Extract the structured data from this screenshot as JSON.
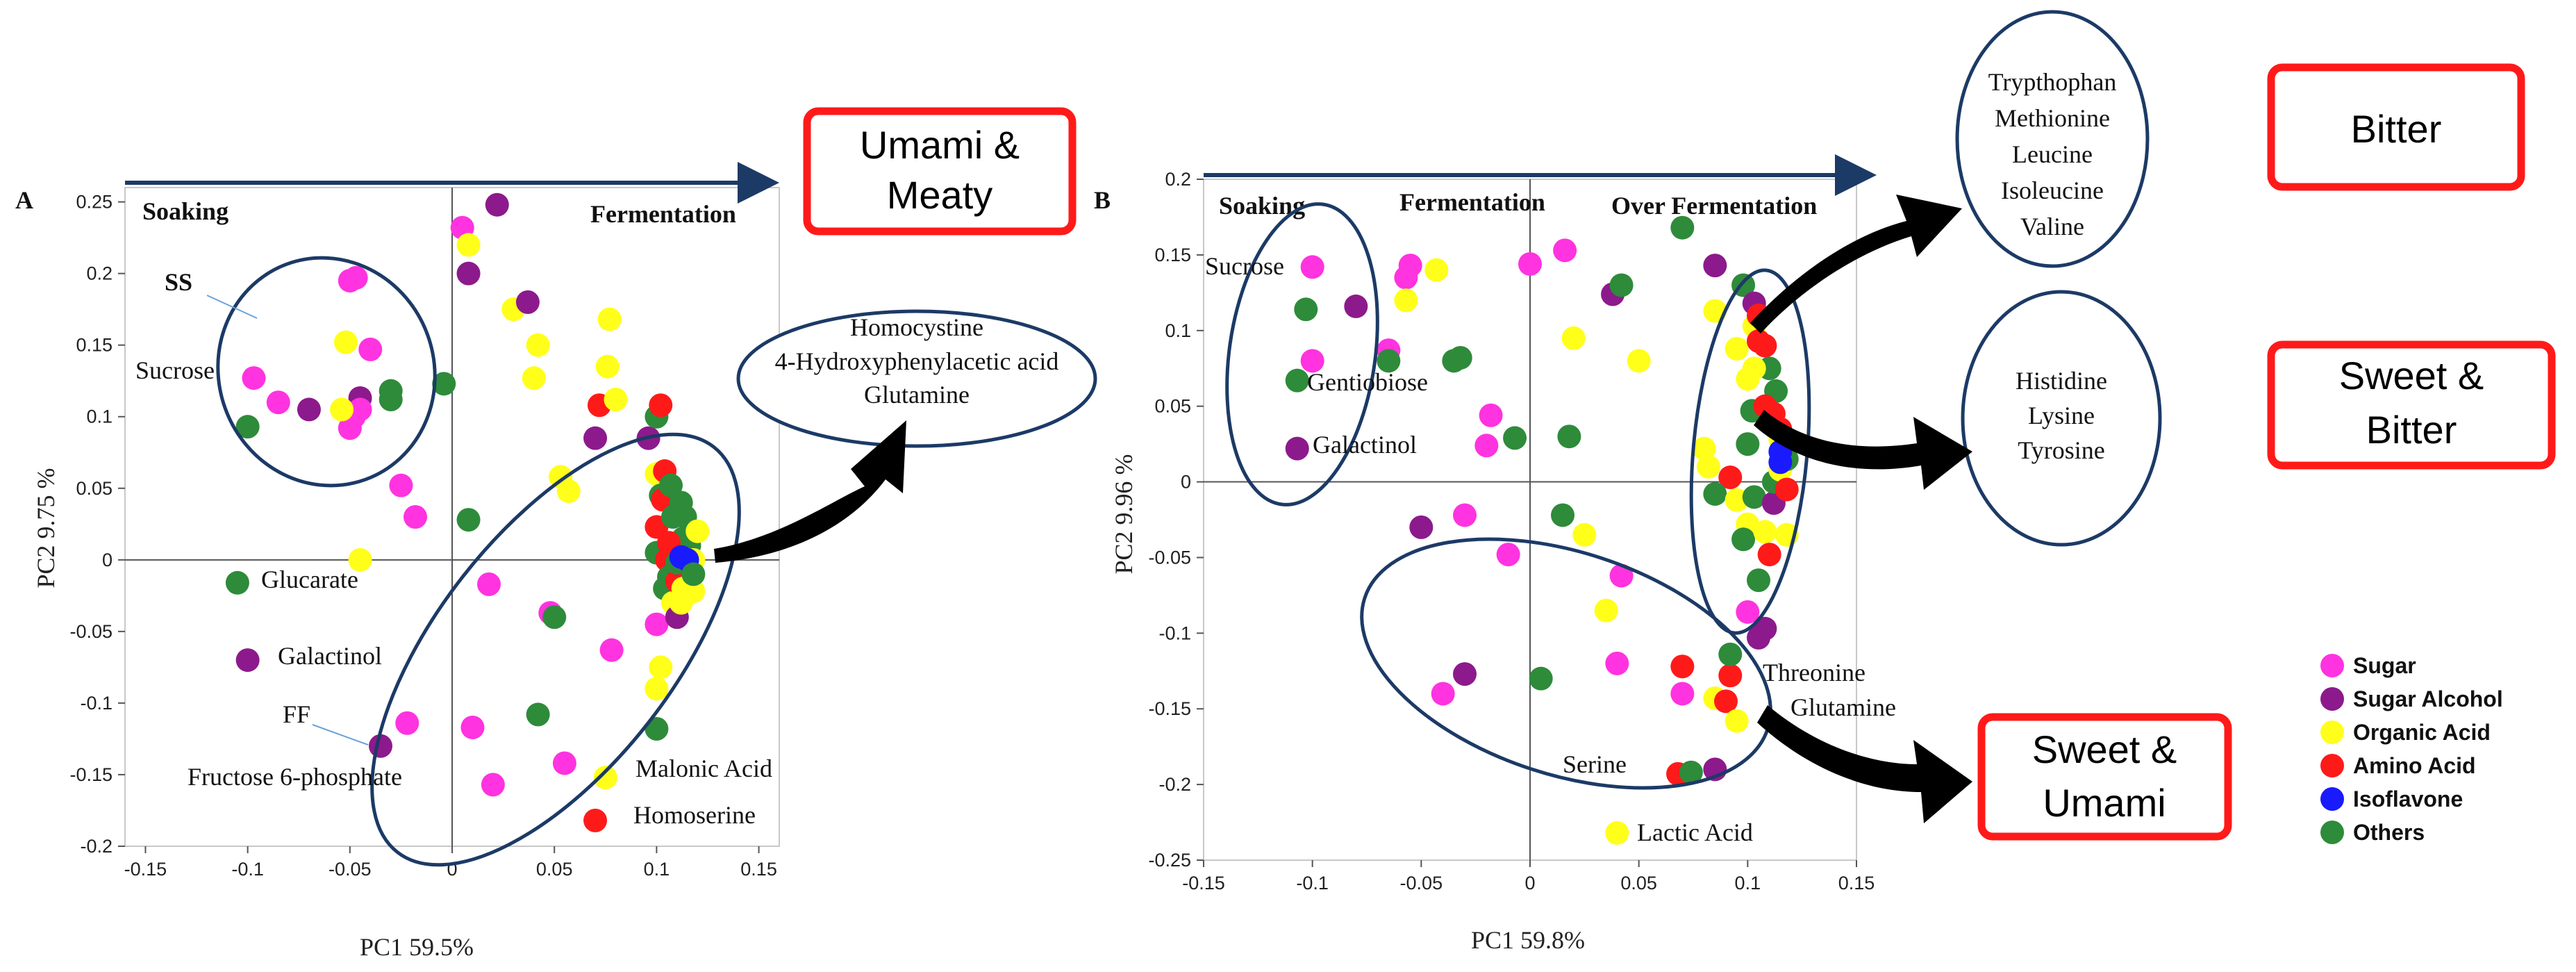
{
  "colors": {
    "Sugar": "#ff33e0",
    "Sugar Alcohol": "#8c1a8c",
    "Organic Acid": "#ffff1a",
    "Amino Acid": "#ff1a1a",
    "Isoflavone": "#1a1aff",
    "Others": "#2e8b3a",
    "ellipse": "#1c3a66",
    "taste_box": "#ff1a1a"
  },
  "chart_data": [
    {
      "type": "scatter",
      "panel": "A",
      "xlabel": "PC1 59.5%",
      "ylabel": "PC2 9.75 %",
      "xlim": [
        -0.16,
        0.16
      ],
      "ylim": [
        -0.2,
        0.26
      ],
      "xticks": [
        "-0.15",
        "-0.1",
        "-0.05",
        "0",
        "0.05",
        "0.1",
        "0.15"
      ],
      "yticks": [
        "0.25",
        "0.2",
        "0.15",
        "0.1",
        "0.05",
        "0",
        "-0.05",
        "-0.1",
        "-0.15",
        "-0.2"
      ],
      "phases": [
        "Soaking",
        "Fermentation"
      ],
      "annotations": [
        "SS",
        "Sucrose",
        "Glucarate",
        "Galactinol",
        "FF",
        "Fructose 6-phosphate",
        "Malonic Acid",
        "Homoserine"
      ],
      "callout_compounds": [
        "Homocystine",
        "4-Hydroxyphenylacetic acid",
        "Glutamine"
      ],
      "taste": [
        "Umami &",
        "Meaty"
      ],
      "points": [
        {
          "x": -0.05,
          "y": 0.195,
          "c": "Sugar"
        },
        {
          "x": -0.047,
          "y": 0.197,
          "c": "Sugar"
        },
        {
          "x": -0.052,
          "y": 0.152,
          "c": "Organic Acid"
        },
        {
          "x": -0.04,
          "y": 0.147,
          "c": "Sugar"
        },
        {
          "x": -0.097,
          "y": 0.127,
          "c": "Sugar"
        },
        {
          "x": -0.085,
          "y": 0.11,
          "c": "Sugar"
        },
        {
          "x": -0.07,
          "y": 0.105,
          "c": "Sugar Alcohol"
        },
        {
          "x": -0.1,
          "y": 0.093,
          "c": "Others"
        },
        {
          "x": -0.045,
          "y": 0.113,
          "c": "Sugar Alcohol"
        },
        {
          "x": -0.045,
          "y": 0.105,
          "c": "Sugar"
        },
        {
          "x": -0.048,
          "y": 0.1,
          "c": "Sugar"
        },
        {
          "x": -0.05,
          "y": 0.092,
          "c": "Sugar"
        },
        {
          "x": -0.054,
          "y": 0.105,
          "c": "Organic Acid"
        },
        {
          "x": -0.03,
          "y": 0.118,
          "c": "Others"
        },
        {
          "x": -0.03,
          "y": 0.112,
          "c": "Others"
        },
        {
          "x": -0.004,
          "y": 0.123,
          "c": "Others"
        },
        {
          "x": -0.025,
          "y": 0.052,
          "c": "Sugar"
        },
        {
          "x": -0.018,
          "y": 0.03,
          "c": "Sugar"
        },
        {
          "x": 0.008,
          "y": 0.028,
          "c": "Others"
        },
        {
          "x": -0.045,
          "y": 0.0,
          "c": "Organic Acid"
        },
        {
          "x": -0.105,
          "y": -0.016,
          "c": "Others"
        },
        {
          "x": -0.1,
          "y": -0.07,
          "c": "Sugar Alcohol"
        },
        {
          "x": -0.035,
          "y": -0.13,
          "c": "Sugar Alcohol"
        },
        {
          "x": -0.022,
          "y": -0.114,
          "c": "Sugar"
        },
        {
          "x": 0.01,
          "y": -0.117,
          "c": "Sugar"
        },
        {
          "x": 0.02,
          "y": -0.157,
          "c": "Sugar"
        },
        {
          "x": 0.018,
          "y": -0.017,
          "c": "Sugar"
        },
        {
          "x": 0.048,
          "y": -0.037,
          "c": "Sugar"
        },
        {
          "x": 0.05,
          "y": -0.04,
          "c": "Others"
        },
        {
          "x": 0.042,
          "y": -0.108,
          "c": "Others"
        },
        {
          "x": 0.055,
          "y": -0.142,
          "c": "Sugar"
        },
        {
          "x": 0.078,
          "y": -0.063,
          "c": "Sugar"
        },
        {
          "x": 0.075,
          "y": -0.152,
          "c": "Organic Acid"
        },
        {
          "x": 0.07,
          "y": -0.182,
          "c": "Amino Acid"
        },
        {
          "x": 0.1,
          "y": -0.118,
          "c": "Others"
        },
        {
          "x": 0.1,
          "y": -0.09,
          "c": "Organic Acid"
        },
        {
          "x": 0.1,
          "y": -0.045,
          "c": "Sugar"
        },
        {
          "x": 0.102,
          "y": -0.075,
          "c": "Organic Acid"
        },
        {
          "x": 0.005,
          "y": 0.232,
          "c": "Sugar"
        },
        {
          "x": 0.008,
          "y": 0.22,
          "c": "Organic Acid"
        },
        {
          "x": 0.008,
          "y": 0.2,
          "c": "Sugar Alcohol"
        },
        {
          "x": 0.022,
          "y": 0.248,
          "c": "Sugar Alcohol"
        },
        {
          "x": 0.03,
          "y": 0.175,
          "c": "Organic Acid"
        },
        {
          "x": 0.037,
          "y": 0.18,
          "c": "Sugar Alcohol"
        },
        {
          "x": 0.042,
          "y": 0.15,
          "c": "Organic Acid"
        },
        {
          "x": 0.04,
          "y": 0.127,
          "c": "Organic Acid"
        },
        {
          "x": 0.077,
          "y": 0.168,
          "c": "Organic Acid"
        },
        {
          "x": 0.076,
          "y": 0.135,
          "c": "Organic Acid"
        },
        {
          "x": 0.053,
          "y": 0.058,
          "c": "Organic Acid"
        },
        {
          "x": 0.057,
          "y": 0.048,
          "c": "Organic Acid"
        },
        {
          "x": 0.07,
          "y": 0.085,
          "c": "Sugar Alcohol"
        },
        {
          "x": 0.072,
          "y": 0.108,
          "c": "Amino Acid"
        },
        {
          "x": 0.08,
          "y": 0.112,
          "c": "Organic Acid"
        },
        {
          "x": 0.096,
          "y": 0.085,
          "c": "Sugar Alcohol"
        },
        {
          "x": 0.1,
          "y": 0.1,
          "c": "Others"
        },
        {
          "x": 0.1,
          "y": 0.06,
          "c": "Organic Acid"
        },
        {
          "x": 0.102,
          "y": 0.045,
          "c": "Others"
        },
        {
          "x": 0.1,
          "y": 0.023,
          "c": "Amino Acid"
        },
        {
          "x": 0.102,
          "y": 0.108,
          "c": "Amino Acid"
        },
        {
          "x": 0.104,
          "y": 0.062,
          "c": "Amino Acid"
        },
        {
          "x": 0.103,
          "y": 0.042,
          "c": "Amino Acid"
        },
        {
          "x": 0.107,
          "y": 0.052,
          "c": "Others"
        },
        {
          "x": 0.108,
          "y": 0.03,
          "c": "Others"
        },
        {
          "x": 0.112,
          "y": 0.04,
          "c": "Others"
        },
        {
          "x": 0.1,
          "y": 0.005,
          "c": "Others"
        },
        {
          "x": 0.105,
          "y": 0.0,
          "c": "Amino Acid"
        },
        {
          "x": 0.106,
          "y": -0.012,
          "c": "Others"
        },
        {
          "x": 0.104,
          "y": -0.02,
          "c": "Others"
        },
        {
          "x": 0.108,
          "y": -0.03,
          "c": "Organic Acid"
        },
        {
          "x": 0.11,
          "y": -0.04,
          "c": "Sugar Alcohol"
        },
        {
          "x": 0.112,
          "y": -0.03,
          "c": "Organic Acid"
        },
        {
          "x": 0.11,
          "y": -0.015,
          "c": "Amino Acid"
        },
        {
          "x": 0.113,
          "y": 0.015,
          "c": "Others"
        },
        {
          "x": 0.116,
          "y": 0.01,
          "c": "Others"
        },
        {
          "x": 0.114,
          "y": 0.03,
          "c": "Others"
        },
        {
          "x": 0.115,
          "y": -0.005,
          "c": "Amino Acid"
        },
        {
          "x": 0.113,
          "y": -0.02,
          "c": "Organic Acid"
        },
        {
          "x": 0.118,
          "y": -0.022,
          "c": "Organic Acid"
        },
        {
          "x": 0.12,
          "y": 0.02,
          "c": "Organic Acid"
        },
        {
          "x": 0.118,
          "y": 0.0,
          "c": "Organic Acid"
        },
        {
          "x": 0.106,
          "y": 0.012,
          "c": "Amino Acid"
        },
        {
          "x": 0.11,
          "y": -0.002,
          "c": "Others"
        },
        {
          "x": 0.112,
          "y": 0.002,
          "c": "Isoflavone"
        },
        {
          "x": 0.115,
          "y": 0.0,
          "c": "Isoflavone"
        },
        {
          "x": 0.118,
          "y": -0.01,
          "c": "Others"
        }
      ]
    },
    {
      "type": "scatter",
      "panel": "B",
      "xlabel": "PC1 59.8%",
      "ylabel": "PC2 9.96 %",
      "xlim": [
        -0.15,
        0.15
      ],
      "ylim": [
        -0.25,
        0.2
      ],
      "xticks": [
        "-0.15",
        "-0.1",
        "-0.05",
        "0",
        "0.05",
        "0.1",
        "0.15"
      ],
      "yticks": [
        "0.2",
        "0.15",
        "0.1",
        "0.05",
        "0",
        "-0.05",
        "-0.1",
        "-0.15",
        "-0.2",
        "-0.25"
      ],
      "phases": [
        "Soaking",
        "Fermentation",
        "Over Fermentation"
      ],
      "annotations": [
        "Sucrose",
        "Gentiobiose",
        "Galactinol",
        "Threonine",
        "Glutamine",
        "Serine",
        "Lactic Acid"
      ],
      "callout_top": [
        "Trypthophan",
        "Methionine",
        "Leucine",
        "Isoleucine",
        "Valine"
      ],
      "callout_mid": [
        "Histidine",
        "Lysine",
        "Tyrosine"
      ],
      "taste_top": [
        "Bitter"
      ],
      "taste_mid": [
        "Sweet &",
        "Bitter"
      ],
      "taste_bottom": [
        "Sweet &",
        "Umami"
      ],
      "points": [
        {
          "x": -0.1,
          "y": 0.142,
          "c": "Sugar"
        },
        {
          "x": -0.1,
          "y": 0.08,
          "c": "Sugar"
        },
        {
          "x": -0.103,
          "y": 0.114,
          "c": "Others"
        },
        {
          "x": -0.08,
          "y": 0.116,
          "c": "Sugar Alcohol"
        },
        {
          "x": -0.065,
          "y": 0.087,
          "c": "Sugar"
        },
        {
          "x": -0.065,
          "y": 0.08,
          "c": "Others"
        },
        {
          "x": -0.055,
          "y": 0.143,
          "c": "Sugar"
        },
        {
          "x": -0.057,
          "y": 0.135,
          "c": "Sugar"
        },
        {
          "x": -0.057,
          "y": 0.12,
          "c": "Organic Acid"
        },
        {
          "x": -0.043,
          "y": 0.14,
          "c": "Organic Acid"
        },
        {
          "x": -0.035,
          "y": 0.08,
          "c": "Others"
        },
        {
          "x": -0.032,
          "y": 0.082,
          "c": "Others"
        },
        {
          "x": -0.107,
          "y": 0.067,
          "c": "Others"
        },
        {
          "x": -0.107,
          "y": 0.022,
          "c": "Sugar Alcohol"
        },
        {
          "x": -0.018,
          "y": 0.044,
          "c": "Sugar"
        },
        {
          "x": -0.02,
          "y": 0.024,
          "c": "Sugar"
        },
        {
          "x": -0.007,
          "y": 0.029,
          "c": "Others"
        },
        {
          "x": 0.0,
          "y": 0.144,
          "c": "Sugar"
        },
        {
          "x": 0.016,
          "y": 0.153,
          "c": "Sugar"
        },
        {
          "x": 0.02,
          "y": 0.095,
          "c": "Organic Acid"
        },
        {
          "x": 0.018,
          "y": 0.03,
          "c": "Others"
        },
        {
          "x": 0.038,
          "y": 0.124,
          "c": "Sugar Alcohol"
        },
        {
          "x": 0.042,
          "y": 0.13,
          "c": "Others"
        },
        {
          "x": 0.05,
          "y": 0.08,
          "c": "Organic Acid"
        },
        {
          "x": 0.07,
          "y": 0.168,
          "c": "Others"
        },
        {
          "x": -0.05,
          "y": -0.03,
          "c": "Sugar Alcohol"
        },
        {
          "x": -0.03,
          "y": -0.022,
          "c": "Sugar"
        },
        {
          "x": -0.01,
          "y": -0.048,
          "c": "Sugar"
        },
        {
          "x": 0.015,
          "y": -0.022,
          "c": "Others"
        },
        {
          "x": 0.025,
          "y": -0.035,
          "c": "Organic Acid"
        },
        {
          "x": 0.042,
          "y": -0.062,
          "c": "Sugar"
        },
        {
          "x": 0.035,
          "y": -0.085,
          "c": "Organic Acid"
        },
        {
          "x": 0.04,
          "y": -0.12,
          "c": "Sugar"
        },
        {
          "x": 0.005,
          "y": -0.13,
          "c": "Others"
        },
        {
          "x": -0.03,
          "y": -0.127,
          "c": "Sugar Alcohol"
        },
        {
          "x": -0.04,
          "y": -0.14,
          "c": "Sugar"
        },
        {
          "x": 0.04,
          "y": -0.232,
          "c": "Organic Acid"
        },
        {
          "x": 0.07,
          "y": -0.122,
          "c": "Amino Acid"
        },
        {
          "x": 0.07,
          "y": -0.14,
          "c": "Sugar"
        },
        {
          "x": 0.068,
          "y": -0.193,
          "c": "Amino Acid"
        },
        {
          "x": 0.074,
          "y": -0.192,
          "c": "Others"
        },
        {
          "x": 0.085,
          "y": -0.19,
          "c": "Sugar Alcohol"
        },
        {
          "x": 0.085,
          "y": -0.143,
          "c": "Organic Acid"
        },
        {
          "x": 0.09,
          "y": -0.145,
          "c": "Amino Acid"
        },
        {
          "x": 0.092,
          "y": -0.128,
          "c": "Amino Acid"
        },
        {
          "x": 0.095,
          "y": -0.158,
          "c": "Organic Acid"
        },
        {
          "x": 0.092,
          "y": -0.114,
          "c": "Others"
        },
        {
          "x": 0.1,
          "y": -0.086,
          "c": "Sugar"
        },
        {
          "x": 0.105,
          "y": -0.103,
          "c": "Sugar Alcohol"
        },
        {
          "x": 0.108,
          "y": -0.097,
          "c": "Sugar Alcohol"
        },
        {
          "x": 0.085,
          "y": 0.143,
          "c": "Sugar Alcohol"
        },
        {
          "x": 0.098,
          "y": 0.13,
          "c": "Others"
        },
        {
          "x": 0.103,
          "y": 0.118,
          "c": "Sugar Alcohol"
        },
        {
          "x": 0.085,
          "y": 0.113,
          "c": "Organic Acid"
        },
        {
          "x": 0.095,
          "y": 0.088,
          "c": "Organic Acid"
        },
        {
          "x": 0.103,
          "y": 0.103,
          "c": "Organic Acid"
        },
        {
          "x": 0.105,
          "y": 0.11,
          "c": "Amino Acid"
        },
        {
          "x": 0.105,
          "y": 0.093,
          "c": "Amino Acid"
        },
        {
          "x": 0.108,
          "y": 0.09,
          "c": "Amino Acid"
        },
        {
          "x": 0.11,
          "y": 0.075,
          "c": "Others"
        },
        {
          "x": 0.113,
          "y": 0.06,
          "c": "Others"
        },
        {
          "x": 0.103,
          "y": 0.075,
          "c": "Organic Acid"
        },
        {
          "x": 0.1,
          "y": 0.068,
          "c": "Organic Acid"
        },
        {
          "x": 0.102,
          "y": 0.047,
          "c": "Others"
        },
        {
          "x": 0.108,
          "y": 0.05,
          "c": "Amino Acid"
        },
        {
          "x": 0.112,
          "y": 0.045,
          "c": "Amino Acid"
        },
        {
          "x": 0.115,
          "y": 0.035,
          "c": "Amino Acid"
        },
        {
          "x": 0.1,
          "y": 0.025,
          "c": "Others"
        },
        {
          "x": 0.08,
          "y": 0.022,
          "c": "Organic Acid"
        },
        {
          "x": 0.082,
          "y": 0.01,
          "c": "Organic Acid"
        },
        {
          "x": 0.092,
          "y": 0.003,
          "c": "Amino Acid"
        },
        {
          "x": 0.085,
          "y": -0.008,
          "c": "Others"
        },
        {
          "x": 0.095,
          "y": -0.012,
          "c": "Organic Acid"
        },
        {
          "x": 0.103,
          "y": -0.01,
          "c": "Others"
        },
        {
          "x": 0.1,
          "y": -0.028,
          "c": "Organic Acid"
        },
        {
          "x": 0.098,
          "y": -0.038,
          "c": "Others"
        },
        {
          "x": 0.108,
          "y": -0.033,
          "c": "Organic Acid"
        },
        {
          "x": 0.11,
          "y": -0.048,
          "c": "Amino Acid"
        },
        {
          "x": 0.105,
          "y": -0.065,
          "c": "Others"
        },
        {
          "x": 0.112,
          "y": -0.014,
          "c": "Sugar Alcohol"
        },
        {
          "x": 0.112,
          "y": 0.0,
          "c": "Others"
        },
        {
          "x": 0.115,
          "y": 0.008,
          "c": "Organic Acid"
        },
        {
          "x": 0.118,
          "y": -0.005,
          "c": "Amino Acid"
        },
        {
          "x": 0.118,
          "y": 0.015,
          "c": "Others"
        },
        {
          "x": 0.115,
          "y": 0.028,
          "c": "Organic Acid"
        },
        {
          "x": 0.118,
          "y": -0.035,
          "c": "Organic Acid"
        },
        {
          "x": 0.115,
          "y": 0.02,
          "c": "Isoflavone"
        },
        {
          "x": 0.115,
          "y": 0.013,
          "c": "Isoflavone"
        }
      ]
    }
  ],
  "legend": {
    "items": [
      "Sugar",
      "Sugar Alcohol",
      "Organic Acid",
      "Amino Acid",
      "Isoflavone",
      "Others"
    ]
  }
}
